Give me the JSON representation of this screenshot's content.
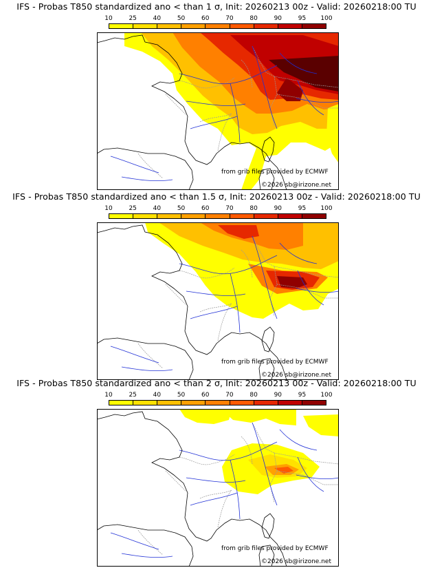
{
  "panels": [
    {
      "title": "IFS - Probas T850  standardized ano < than 1 σ, Init: 20260213 00z - Valid: 20260218:00 TU",
      "level": "high"
    },
    {
      "title": "IFS - Probas T850  standardized ano < than 1.5 σ, Init: 20260213 00z - Valid: 20260218:00 TU",
      "level": "mid"
    },
    {
      "title": "IFS - Probas T850  standardized ano < than 2 σ, Init: 20260213 00z - Valid: 20260218:00 TU",
      "level": "low"
    }
  ],
  "colorbar": {
    "ticks": [
      "10",
      "25",
      "40",
      "50",
      "60",
      "70",
      "80",
      "90",
      "95",
      "100"
    ],
    "colors": [
      "#ffff00",
      "#ffe100",
      "#ffc000",
      "#ffa000",
      "#ff8000",
      "#ff5a00",
      "#e62800",
      "#c00000",
      "#900000",
      "#5a0000"
    ]
  },
  "credits": {
    "source": "from grib files provided by ECMWF",
    "copyright": "©2026 sb@irizone.net"
  },
  "map_colors": {
    "coast": "#000000",
    "rivers": "#1f2fd6",
    "borders": "#9a9a9a"
  }
}
